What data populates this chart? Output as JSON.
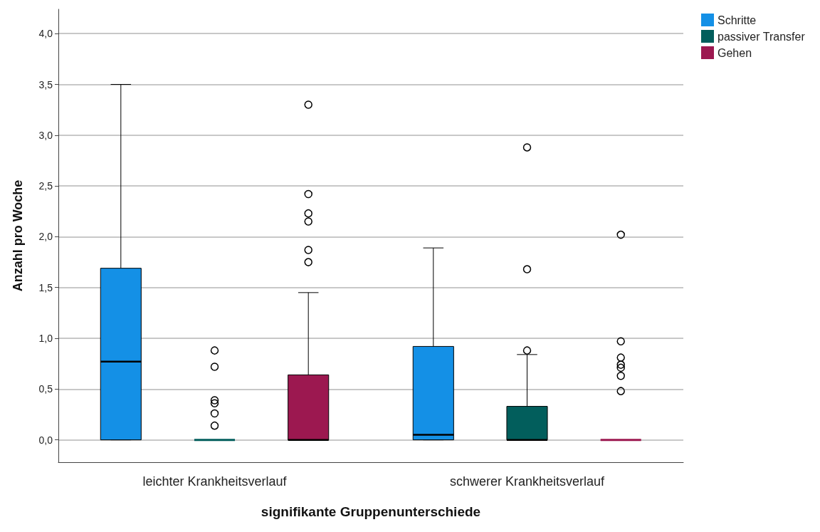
{
  "chart_data": {
    "type": "box",
    "xlabel": "signifikante Gruppenunterschiede",
    "ylabel": "Anzahl pro Woche",
    "categories": [
      "leichter Krankheitsverlauf",
      "schwerer Krankheitsverlauf"
    ],
    "ylim": [
      -0.22,
      4.24
    ],
    "yticks": [
      {
        "value": 0,
        "label": "0,0"
      },
      {
        "value": 0.5,
        "label": "0,5"
      },
      {
        "value": 1,
        "label": "1,0"
      },
      {
        "value": 1.5,
        "label": "1,5"
      },
      {
        "value": 2,
        "label": "2,0"
      },
      {
        "value": 2.5,
        "label": "2,5"
      },
      {
        "value": 3,
        "label": "3,0"
      },
      {
        "value": 3.5,
        "label": "3,5"
      },
      {
        "value": 4,
        "label": "4,0"
      }
    ],
    "grid": "y",
    "legend": "top right",
    "series": [
      {
        "name": "Schritte",
        "color": "#1490e6",
        "boxes": [
          {
            "low": 0,
            "q1": 0,
            "median": 0.77,
            "q3": 1.69,
            "high": 3.5
          },
          {
            "low": 0,
            "q1": 0,
            "median": 0.05,
            "q3": 0.92,
            "high": 1.89
          }
        ]
      },
      {
        "name": "passiver Transfer",
        "color": "#025e5c",
        "boxes": [
          {
            "low": 0,
            "q1": 0,
            "median": 0,
            "q3": 0,
            "high": 0,
            "outliers": [
              0.88,
              0.72,
              0.39,
              0.36,
              0.26,
              0.14
            ]
          },
          {
            "low": 0,
            "q1": 0,
            "median": 0,
            "q3": 0.33,
            "high": 0.84,
            "outliers": [
              0.88,
              1.68,
              2.88
            ]
          }
        ]
      },
      {
        "name": "Gehen",
        "color": "#9c1850",
        "boxes": [
          {
            "low": 0,
            "q1": 0,
            "median": 0,
            "q3": 0.64,
            "high": 1.45,
            "outliers": [
              1.75,
              1.87,
              2.15,
              2.23,
              2.42,
              3.3
            ]
          },
          {
            "low": 0,
            "q1": 0,
            "median": 0,
            "q3": 0,
            "high": 0,
            "outliers": [
              2.02,
              0.97,
              0.81,
              0.74,
              0.71,
              0.63,
              0.48
            ]
          }
        ]
      }
    ]
  }
}
